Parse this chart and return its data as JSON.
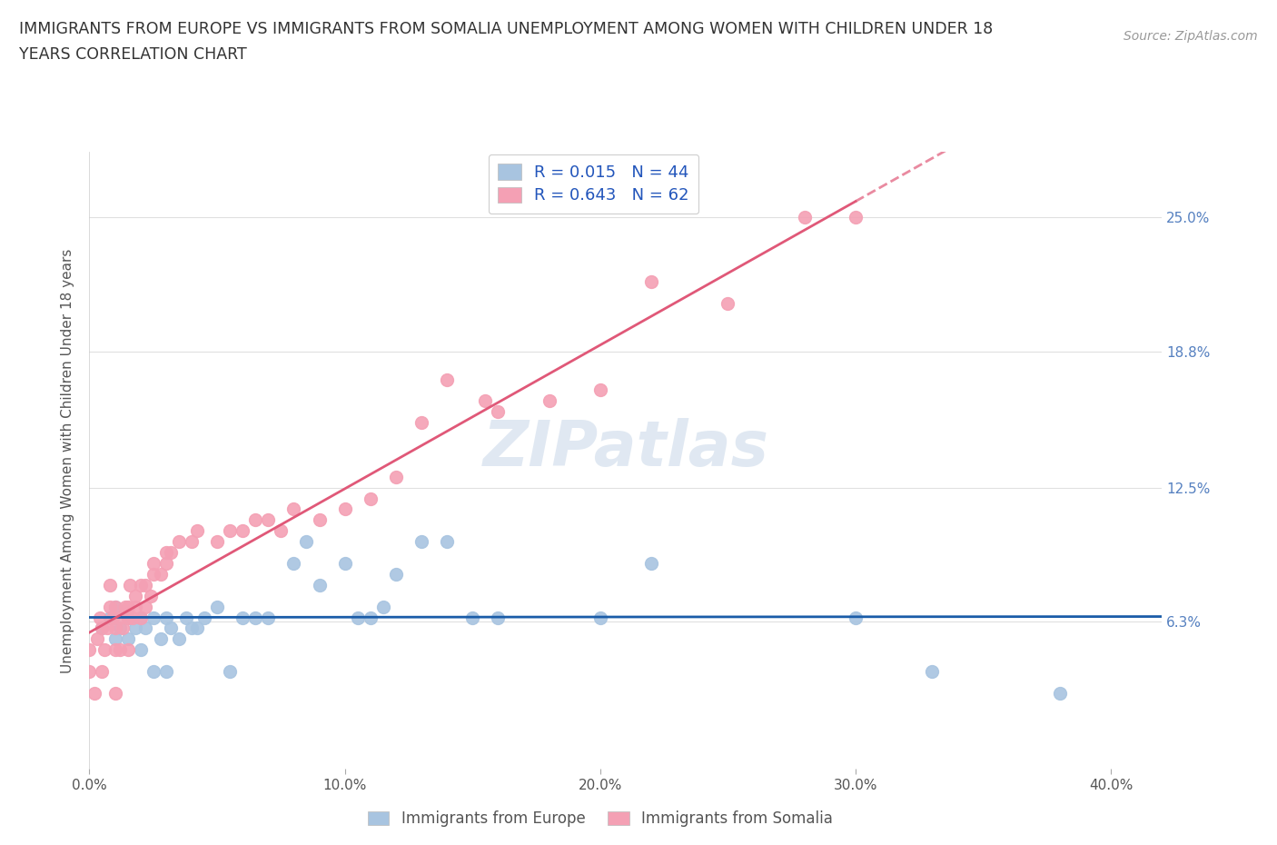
{
  "title_line1": "IMMIGRANTS FROM EUROPE VS IMMIGRANTS FROM SOMALIA UNEMPLOYMENT AMONG WOMEN WITH CHILDREN UNDER 18",
  "title_line2": "YEARS CORRELATION CHART",
  "source_text": "Source: ZipAtlas.com",
  "ylabel": "Unemployment Among Women with Children Under 18 years",
  "xlim": [
    0.0,
    0.42
  ],
  "ylim": [
    -0.005,
    0.28
  ],
  "ytick_vals": [
    0.063,
    0.125,
    0.188,
    0.25
  ],
  "ytick_labels": [
    "6.3%",
    "12.5%",
    "18.8%",
    "25.0%"
  ],
  "xtick_vals": [
    0.0,
    0.1,
    0.2,
    0.3,
    0.4
  ],
  "xtick_labels": [
    "0.0%",
    "10.0%",
    "20.0%",
    "30.0%",
    "40.0%"
  ],
  "background_color": "#ffffff",
  "grid_color": "#e0e0e0",
  "watermark_text": "ZIPatlas",
  "legend_europe_label": "Immigrants from Europe",
  "legend_somalia_label": "Immigrants from Somalia",
  "legend_europe_R": "R = 0.015",
  "legend_europe_N": "N = 44",
  "legend_somalia_R": "R = 0.643",
  "legend_somalia_N": "N = 62",
  "europe_color": "#a8c4e0",
  "somalia_color": "#f4a0b4",
  "europe_line_color": "#1a5ca8",
  "somalia_line_color": "#e05878",
  "europe_scatter_x": [
    0.005,
    0.008,
    0.01,
    0.01,
    0.012,
    0.015,
    0.015,
    0.018,
    0.02,
    0.02,
    0.022,
    0.025,
    0.025,
    0.028,
    0.03,
    0.03,
    0.032,
    0.035,
    0.038,
    0.04,
    0.042,
    0.045,
    0.05,
    0.055,
    0.06,
    0.065,
    0.07,
    0.08,
    0.085,
    0.09,
    0.1,
    0.105,
    0.11,
    0.115,
    0.12,
    0.13,
    0.14,
    0.15,
    0.16,
    0.2,
    0.22,
    0.3,
    0.33,
    0.38
  ],
  "europe_scatter_y": [
    0.06,
    0.065,
    0.055,
    0.07,
    0.06,
    0.055,
    0.065,
    0.06,
    0.05,
    0.065,
    0.06,
    0.04,
    0.065,
    0.055,
    0.04,
    0.065,
    0.06,
    0.055,
    0.065,
    0.06,
    0.06,
    0.065,
    0.07,
    0.04,
    0.065,
    0.065,
    0.065,
    0.09,
    0.1,
    0.08,
    0.09,
    0.065,
    0.065,
    0.07,
    0.085,
    0.1,
    0.1,
    0.065,
    0.065,
    0.065,
    0.09,
    0.065,
    0.04,
    0.03
  ],
  "somalia_scatter_x": [
    0.0,
    0.0,
    0.002,
    0.003,
    0.004,
    0.005,
    0.005,
    0.006,
    0.007,
    0.008,
    0.008,
    0.009,
    0.01,
    0.01,
    0.01,
    0.01,
    0.012,
    0.012,
    0.013,
    0.014,
    0.015,
    0.015,
    0.015,
    0.016,
    0.017,
    0.018,
    0.018,
    0.02,
    0.02,
    0.022,
    0.022,
    0.024,
    0.025,
    0.025,
    0.028,
    0.03,
    0.03,
    0.032,
    0.035,
    0.04,
    0.042,
    0.05,
    0.055,
    0.06,
    0.065,
    0.07,
    0.075,
    0.08,
    0.09,
    0.1,
    0.11,
    0.12,
    0.13,
    0.14,
    0.155,
    0.16,
    0.18,
    0.2,
    0.22,
    0.25,
    0.28,
    0.3
  ],
  "somalia_scatter_y": [
    0.04,
    0.05,
    0.03,
    0.055,
    0.065,
    0.04,
    0.06,
    0.05,
    0.06,
    0.07,
    0.08,
    0.065,
    0.03,
    0.05,
    0.06,
    0.07,
    0.05,
    0.065,
    0.06,
    0.07,
    0.05,
    0.065,
    0.07,
    0.08,
    0.065,
    0.07,
    0.075,
    0.065,
    0.08,
    0.07,
    0.08,
    0.075,
    0.085,
    0.09,
    0.085,
    0.09,
    0.095,
    0.095,
    0.1,
    0.1,
    0.105,
    0.1,
    0.105,
    0.105,
    0.11,
    0.11,
    0.105,
    0.115,
    0.11,
    0.115,
    0.12,
    0.13,
    0.155,
    0.175,
    0.165,
    0.16,
    0.165,
    0.17,
    0.22,
    0.21,
    0.25,
    0.25
  ],
  "somalia_line_x_solid_end": 0.3,
  "somalia_line_x_dash_end": 0.42
}
